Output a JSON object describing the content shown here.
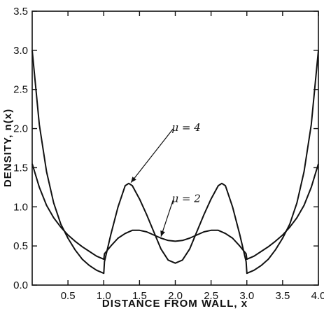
{
  "chart_data": {
    "type": "line",
    "title": "",
    "xlabel": "DISTANCE FROM WALL, x",
    "ylabel": "DENSITY, n(x)",
    "xlim": [
      0,
      4.0
    ],
    "ylim": [
      0,
      3.5
    ],
    "grid": false,
    "x_ticks": [
      0.5,
      1.0,
      1.5,
      2.0,
      2.5,
      3.0,
      3.5,
      4.0
    ],
    "x_tick_labels": [
      "0.5",
      "1.0",
      "1.5",
      "2.0",
      "2.5",
      "3.0",
      "3.5",
      "4.0"
    ],
    "y_ticks": [
      0,
      0.5,
      1.0,
      1.5,
      2.0,
      2.5,
      3.0,
      3.5
    ],
    "y_tick_labels": [
      "0.0",
      "0.5",
      "1.0",
      "1.5",
      "2.0",
      "2.5",
      "3.0",
      "3.5"
    ],
    "series": [
      {
        "x": [
          0,
          0.1,
          0.2,
          0.3,
          0.4,
          0.5,
          0.6,
          0.7,
          0.8,
          0.9,
          1.0,
          1.01,
          1.1,
          1.2,
          1.3,
          1.35,
          1.4,
          1.5,
          1.6,
          1.7,
          1.8,
          1.9,
          2.0,
          2.1,
          2.2,
          2.3,
          2.4,
          2.5,
          2.6,
          2.65,
          2.7,
          2.8,
          2.9,
          2.99,
          3.0,
          3.1,
          3.2,
          3.3,
          3.4,
          3.5,
          3.6,
          3.7,
          3.8,
          3.9,
          4.0
        ],
        "y": [
          3.0,
          2.05,
          1.45,
          1.05,
          0.78,
          0.6,
          0.45,
          0.33,
          0.25,
          0.19,
          0.15,
          0.3,
          0.65,
          1.0,
          1.27,
          1.3,
          1.27,
          1.1,
          0.9,
          0.68,
          0.46,
          0.32,
          0.28,
          0.32,
          0.46,
          0.68,
          0.9,
          1.1,
          1.27,
          1.3,
          1.27,
          1.0,
          0.65,
          0.3,
          0.15,
          0.19,
          0.25,
          0.33,
          0.45,
          0.6,
          0.78,
          1.05,
          1.45,
          2.05,
          3.0
        ]
      },
      {
        "x": [
          0,
          0.1,
          0.2,
          0.3,
          0.4,
          0.5,
          0.6,
          0.7,
          0.8,
          0.9,
          1.0,
          1.01,
          1.1,
          1.2,
          1.3,
          1.4,
          1.5,
          1.6,
          1.7,
          1.8,
          1.9,
          2.0,
          2.1,
          2.2,
          2.3,
          2.4,
          2.5,
          2.6,
          2.7,
          2.8,
          2.9,
          2.99,
          3.0,
          3.1,
          3.2,
          3.3,
          3.4,
          3.5,
          3.6,
          3.7,
          3.8,
          3.9,
          4.0
        ],
        "y": [
          1.55,
          1.25,
          1.02,
          0.86,
          0.74,
          0.64,
          0.56,
          0.49,
          0.43,
          0.37,
          0.33,
          0.4,
          0.5,
          0.6,
          0.66,
          0.7,
          0.7,
          0.68,
          0.64,
          0.6,
          0.57,
          0.56,
          0.57,
          0.6,
          0.64,
          0.68,
          0.7,
          0.7,
          0.66,
          0.6,
          0.5,
          0.4,
          0.33,
          0.37,
          0.43,
          0.49,
          0.56,
          0.64,
          0.74,
          0.86,
          1.02,
          1.25,
          1.55
        ]
      }
    ],
    "annotations": [
      {
        "text": "μ = 4",
        "x": 1.95,
        "y": 1.97,
        "arrow_to": [
          1.38,
          1.31
        ]
      },
      {
        "text": "μ = 2",
        "x": 1.95,
        "y": 1.06,
        "arrow_to": [
          1.8,
          0.62
        ]
      }
    ]
  }
}
